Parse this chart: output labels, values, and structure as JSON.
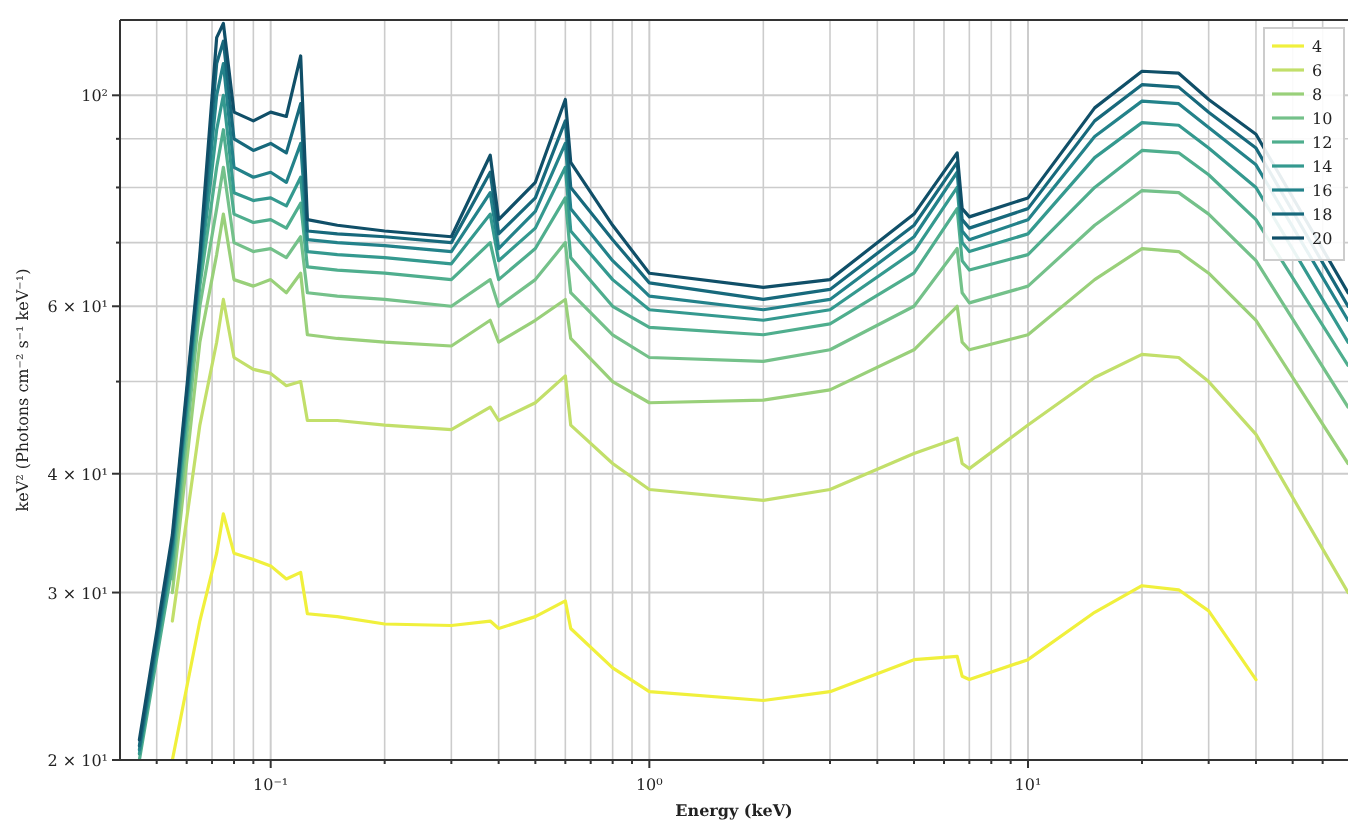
{
  "chart_data": {
    "type": "line",
    "xlabel": "Energy (keV)",
    "ylabel": "keV² (Photons cm⁻² s⁻¹ keV⁻¹)",
    "log": "xy",
    "grid": true,
    "legend": "top right",
    "marker": "none",
    "line_style": "solid",
    "x": [
      0.045,
      0.055,
      0.065,
      0.072,
      0.075,
      0.08,
      0.09,
      0.1,
      0.11,
      0.12,
      0.125,
      0.15,
      0.2,
      0.3,
      0.38,
      0.4,
      0.5,
      0.6,
      0.62,
      0.8,
      1.0,
      2,
      3,
      5,
      6.5,
      6.7,
      7,
      10,
      15,
      20,
      25,
      30,
      40,
      70
    ],
    "xlim": [
      0.04,
      70
    ],
    "ylim": [
      20,
      120
    ],
    "xticks": [
      {
        "value": 0.05,
        "label": null
      },
      {
        "value": 0.06,
        "label": null
      },
      {
        "value": 0.07,
        "label": null
      },
      {
        "value": 0.08,
        "label": null
      },
      {
        "value": 0.09,
        "label": null
      },
      {
        "value": 0.1,
        "label": "10⁻¹"
      },
      {
        "value": 0.2,
        "label": null
      },
      {
        "value": 0.3,
        "label": null
      },
      {
        "value": 0.4,
        "label": null
      },
      {
        "value": 0.5,
        "label": null
      },
      {
        "value": 0.6,
        "label": null
      },
      {
        "value": 0.7,
        "label": null
      },
      {
        "value": 0.8,
        "label": null
      },
      {
        "value": 0.9,
        "label": null
      },
      {
        "value": 1,
        "label": "10⁰"
      },
      {
        "value": 2,
        "label": null
      },
      {
        "value": 3,
        "label": null
      },
      {
        "value": 4,
        "label": null
      },
      {
        "value": 5,
        "label": null
      },
      {
        "value": 6,
        "label": null
      },
      {
        "value": 7,
        "label": null
      },
      {
        "value": 8,
        "label": null
      },
      {
        "value": 9,
        "label": null
      },
      {
        "value": 10,
        "label": "10¹"
      },
      {
        "value": 20,
        "label": null
      },
      {
        "value": 30,
        "label": null
      },
      {
        "value": 40,
        "label": null
      },
      {
        "value": 50,
        "label": null
      },
      {
        "value": 60,
        "label": null
      }
    ],
    "yticks": [
      {
        "value": 20,
        "label": "2 × 10¹"
      },
      {
        "value": 30,
        "label": "3 × 10¹"
      },
      {
        "value": 40,
        "label": "4 × 10¹"
      },
      {
        "value": 50,
        "label": null
      },
      {
        "value": 60,
        "label": "6 × 10¹"
      },
      {
        "value": 70,
        "label": null
      },
      {
        "value": 80,
        "label": null
      },
      {
        "value": 90,
        "label": null
      },
      {
        "value": 100,
        "label": "10²"
      }
    ],
    "series": [
      {
        "name": "4",
        "color": "#f0f03c",
        "values": [
          null,
          20,
          28,
          33,
          36.3,
          33,
          32.5,
          32,
          31,
          31.5,
          28.5,
          28.3,
          27.8,
          27.7,
          28,
          27.5,
          28.3,
          29.4,
          27.5,
          25,
          23.6,
          23.1,
          23.6,
          25.5,
          25.7,
          24.5,
          24.3,
          25.5,
          28.6,
          30.5,
          30.2,
          28.7,
          24.3,
          null
        ]
      },
      {
        "name": "6",
        "color": "#c2df6a",
        "values": [
          null,
          28,
          45,
          55,
          61,
          53,
          51.5,
          51,
          49.5,
          50,
          45.5,
          45.5,
          45,
          44.5,
          47,
          45.5,
          47.5,
          50.7,
          45,
          41,
          38.5,
          37.5,
          38.5,
          42,
          43.6,
          41,
          40.5,
          45,
          50.5,
          53.4,
          53,
          50,
          44,
          30
        ]
      },
      {
        "name": "8",
        "color": "#99d07a",
        "values": [
          null,
          30,
          55,
          68,
          75,
          64,
          63,
          64,
          62,
          65,
          56,
          55.5,
          55,
          54.5,
          58,
          55,
          58,
          61,
          55.5,
          50,
          47.5,
          47.8,
          49,
          54,
          60,
          55,
          54,
          56,
          64,
          69,
          68.5,
          65,
          58,
          41
        ]
      },
      {
        "name": "10",
        "color": "#74c18a",
        "values": [
          null,
          31,
          60,
          76,
          84,
          70,
          68.5,
          69,
          67.5,
          71,
          62,
          61.5,
          61,
          60,
          64,
          60,
          64,
          70,
          62,
          56,
          53,
          52.5,
          54,
          60,
          69,
          62,
          60.5,
          63,
          73,
          79.4,
          79,
          75,
          67,
          47
        ]
      },
      {
        "name": "12",
        "color": "#4fae8e",
        "values": [
          20,
          32,
          63,
          84,
          92,
          75,
          73.5,
          74,
          72.5,
          77,
          66,
          65.5,
          65,
          64,
          70,
          64,
          69,
          78,
          67.5,
          60,
          57,
          56,
          57.5,
          65,
          76,
          67,
          65.5,
          68,
          80,
          87.5,
          87,
          82.5,
          74,
          52
        ]
      },
      {
        "name": "14",
        "color": "#34998f",
        "values": [
          20.3,
          33,
          65,
          92,
          100,
          79,
          77.5,
          78,
          76.5,
          82,
          68.5,
          68,
          67.5,
          66.5,
          75,
          67,
          72.5,
          84,
          72,
          64,
          59.5,
          58,
          59.5,
          68.5,
          80,
          70,
          68.5,
          71.5,
          86,
          93.6,
          93,
          88,
          80,
          55
        ]
      },
      {
        "name": "16",
        "color": "#23828a",
        "values": [
          20.5,
          33.5,
          66,
          100,
          108,
          84,
          82,
          83,
          81,
          89,
          70.5,
          70,
          69.5,
          68.5,
          79,
          69,
          75.5,
          89,
          76,
          67,
          61.5,
          59.5,
          61,
          71,
          83,
          72,
          70.5,
          74,
          90.5,
          98.6,
          98,
          92.5,
          84.5,
          58
        ]
      },
      {
        "name": "18",
        "color": "#17697c",
        "values": [
          20.7,
          34,
          67,
          108,
          114,
          90,
          87.5,
          89,
          87,
          98,
          72,
          71.5,
          71,
          70,
          83,
          71.5,
          78,
          94,
          80,
          70.5,
          63.5,
          61,
          62.5,
          73,
          85,
          74,
          72.5,
          76,
          94,
          102.6,
          102,
          96,
          88,
          60
        ]
      },
      {
        "name": "20",
        "color": "#104f68",
        "values": [
          21,
          34.5,
          68,
          115,
          119,
          96,
          94,
          96,
          95,
          110,
          74,
          73,
          72,
          71,
          86.5,
          74,
          81,
          99,
          85,
          73,
          65,
          62.8,
          64,
          75,
          87,
          76,
          74.5,
          78,
          97,
          106,
          105.5,
          99,
          91,
          62
        ]
      }
    ]
  }
}
